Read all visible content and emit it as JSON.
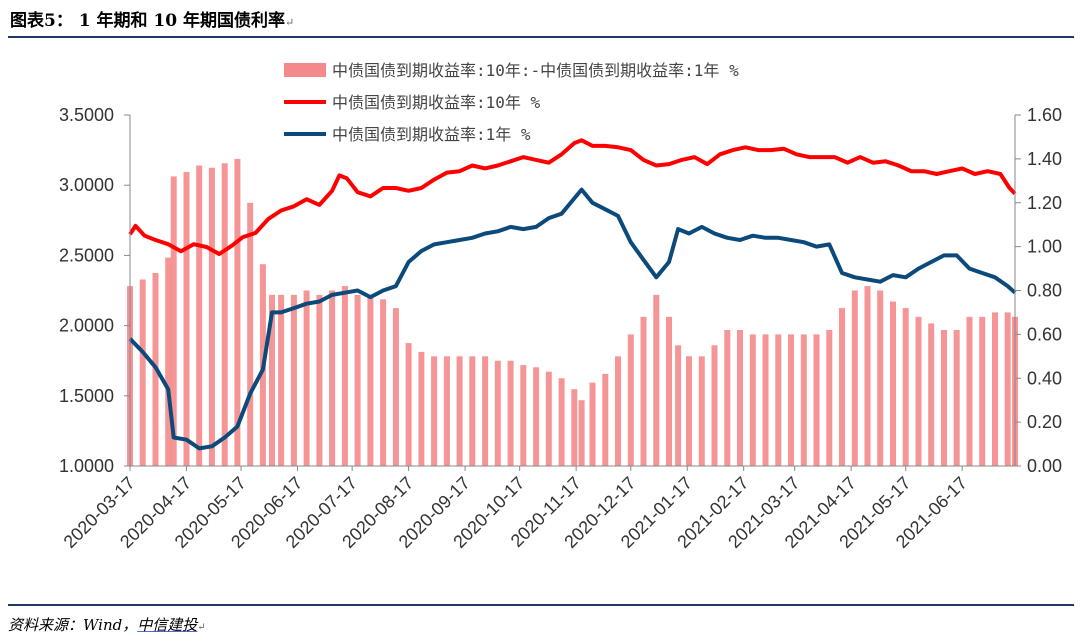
{
  "figure": {
    "title": "图表5： 1 年期和 10 年期国债利率",
    "title_mark": "↵",
    "source": "资料来源：Wind，",
    "source_brand": "中信建投",
    "source_mark": "↵"
  },
  "chart_data": {
    "type": "line",
    "title": "",
    "legend": {
      "position": "top-right",
      "entries": [
        {
          "label": "中债国债到期收益率:10年:-中债国债到期收益率:1年 %",
          "kind": "bar",
          "color": "#f4898b"
        },
        {
          "label": "中债国债到期收益率:10年 %",
          "kind": "line",
          "color": "#ff0000"
        },
        {
          "label": "中债国债到期收益率:1年 %",
          "kind": "line",
          "color": "#0b4a7a"
        }
      ]
    },
    "x_axis": {
      "start": "2020-03-17",
      "end": "2021-07-16",
      "tick_labels": [
        "2020-03-17",
        "2020-04-17",
        "2020-05-17",
        "2020-06-17",
        "2020-07-17",
        "2020-08-17",
        "2020-09-17",
        "2020-10-17",
        "2020-11-17",
        "2020-12-17",
        "2021-01-17",
        "2021-02-17",
        "2021-03-17",
        "2021-04-17",
        "2021-05-17",
        "2021-06-17"
      ]
    },
    "y_left": {
      "range": [
        1.0,
        3.5
      ],
      "tick_labels": [
        "3.5000",
        "3.0000",
        "2.5000",
        "2.0000",
        "1.5000",
        "1.0000"
      ],
      "tick_values": [
        3.5,
        3.0,
        2.5,
        2.0,
        1.5,
        1.0
      ]
    },
    "y_right": {
      "range": [
        0.0,
        1.6
      ],
      "tick_labels": [
        "1.60",
        "1.40",
        "1.20",
        "1.00",
        "0.80",
        "0.60",
        "0.40",
        "0.20",
        "0.00"
      ],
      "tick_values": [
        1.6,
        1.4,
        1.2,
        1.0,
        0.8,
        0.6,
        0.4,
        0.2,
        0.0
      ]
    },
    "grid": false,
    "series": [
      {
        "name": "中债国债到期收益率:10年 %",
        "axis": "left",
        "color": "#ff0000",
        "x": [
          "2020-03-17",
          "2020-03-20",
          "2020-03-25",
          "2020-03-31",
          "2020-04-07",
          "2020-04-14",
          "2020-04-21",
          "2020-04-28",
          "2020-05-05",
          "2020-05-12",
          "2020-05-18",
          "2020-05-25",
          "2020-06-01",
          "2020-06-08",
          "2020-06-15",
          "2020-06-22",
          "2020-06-29",
          "2020-07-06",
          "2020-07-10",
          "2020-07-14",
          "2020-07-20",
          "2020-07-27",
          "2020-08-03",
          "2020-08-10",
          "2020-08-17",
          "2020-08-24",
          "2020-08-31",
          "2020-09-07",
          "2020-09-14",
          "2020-09-21",
          "2020-09-28",
          "2020-10-05",
          "2020-10-12",
          "2020-10-19",
          "2020-10-26",
          "2020-11-02",
          "2020-11-09",
          "2020-11-16",
          "2020-11-20",
          "2020-11-26",
          "2020-12-03",
          "2020-12-10",
          "2020-12-17",
          "2020-12-24",
          "2020-12-31",
          "2021-01-07",
          "2021-01-14",
          "2021-01-21",
          "2021-01-28",
          "2021-02-04",
          "2021-02-11",
          "2021-02-18",
          "2021-02-25",
          "2021-03-04",
          "2021-03-11",
          "2021-03-18",
          "2021-03-25",
          "2021-04-01",
          "2021-04-08",
          "2021-04-15",
          "2021-04-22",
          "2021-04-29",
          "2021-05-06",
          "2021-05-13",
          "2021-05-20",
          "2021-05-27",
          "2021-06-03",
          "2021-06-10",
          "2021-06-17",
          "2021-06-24",
          "2021-07-01",
          "2021-07-08",
          "2021-07-13",
          "2021-07-16"
        ],
        "values": [
          2.65,
          2.71,
          2.64,
          2.61,
          2.58,
          2.53,
          2.58,
          2.56,
          2.51,
          2.57,
          2.63,
          2.66,
          2.76,
          2.82,
          2.85,
          2.9,
          2.86,
          2.96,
          3.07,
          3.05,
          2.95,
          2.92,
          2.98,
          2.98,
          2.96,
          2.98,
          3.04,
          3.09,
          3.1,
          3.14,
          3.12,
          3.14,
          3.17,
          3.2,
          3.18,
          3.16,
          3.22,
          3.3,
          3.32,
          3.28,
          3.28,
          3.27,
          3.25,
          3.18,
          3.14,
          3.15,
          3.18,
          3.2,
          3.15,
          3.22,
          3.25,
          3.27,
          3.25,
          3.25,
          3.26,
          3.22,
          3.2,
          3.2,
          3.2,
          3.16,
          3.2,
          3.16,
          3.17,
          3.14,
          3.1,
          3.1,
          3.08,
          3.1,
          3.12,
          3.08,
          3.1,
          3.08,
          2.98,
          2.94
        ]
      },
      {
        "name": "中债国债到期收益率:1年 %",
        "axis": "right",
        "color": "#0b4a7a",
        "x": [
          "2020-03-17",
          "2020-03-24",
          "2020-03-31",
          "2020-04-07",
          "2020-04-10",
          "2020-04-17",
          "2020-04-24",
          "2020-05-01",
          "2020-05-08",
          "2020-05-15",
          "2020-05-22",
          "2020-05-29",
          "2020-06-03",
          "2020-06-08",
          "2020-06-15",
          "2020-06-22",
          "2020-06-29",
          "2020-07-06",
          "2020-07-13",
          "2020-07-20",
          "2020-07-27",
          "2020-08-03",
          "2020-08-10",
          "2020-08-17",
          "2020-08-24",
          "2020-08-31",
          "2020-09-07",
          "2020-09-14",
          "2020-09-21",
          "2020-09-28",
          "2020-10-05",
          "2020-10-12",
          "2020-10-19",
          "2020-10-26",
          "2020-11-02",
          "2020-11-09",
          "2020-11-16",
          "2020-11-20",
          "2020-11-26",
          "2020-12-03",
          "2020-12-10",
          "2020-12-17",
          "2020-12-24",
          "2020-12-31",
          "2021-01-07",
          "2021-01-12",
          "2021-01-18",
          "2021-01-25",
          "2021-02-01",
          "2021-02-08",
          "2021-02-15",
          "2021-02-22",
          "2021-03-01",
          "2021-03-08",
          "2021-03-15",
          "2021-03-22",
          "2021-03-29",
          "2021-04-05",
          "2021-04-12",
          "2021-04-19",
          "2021-04-26",
          "2021-05-03",
          "2021-05-10",
          "2021-05-17",
          "2021-05-24",
          "2021-05-31",
          "2021-06-07",
          "2021-06-14",
          "2021-06-21",
          "2021-06-28",
          "2021-07-05",
          "2021-07-12",
          "2021-07-16"
        ],
        "values": [
          0.58,
          0.52,
          0.45,
          0.35,
          0.13,
          0.12,
          0.08,
          0.09,
          0.13,
          0.18,
          0.33,
          0.44,
          0.7,
          0.7,
          0.72,
          0.74,
          0.75,
          0.78,
          0.79,
          0.8,
          0.77,
          0.8,
          0.82,
          0.93,
          0.98,
          1.01,
          1.02,
          1.03,
          1.04,
          1.06,
          1.07,
          1.09,
          1.08,
          1.09,
          1.13,
          1.15,
          1.22,
          1.26,
          1.2,
          1.17,
          1.14,
          1.02,
          0.94,
          0.86,
          0.93,
          1.08,
          1.06,
          1.09,
          1.06,
          1.04,
          1.03,
          1.05,
          1.04,
          1.04,
          1.03,
          1.02,
          1.0,
          1.01,
          0.88,
          0.86,
          0.85,
          0.84,
          0.87,
          0.86,
          0.9,
          0.93,
          0.96,
          0.96,
          0.9,
          0.88,
          0.86,
          0.82,
          0.79
        ]
      },
      {
        "name": "中债国债到期收益率:10年:-中债国债到期收益率:1年 %",
        "axis": "right",
        "kind": "bar",
        "color": "#f4898b",
        "x": [
          "2020-03-17",
          "2020-03-24",
          "2020-03-31",
          "2020-04-07",
          "2020-04-10",
          "2020-04-17",
          "2020-04-24",
          "2020-05-01",
          "2020-05-08",
          "2020-05-15",
          "2020-05-22",
          "2020-05-29",
          "2020-06-03",
          "2020-06-08",
          "2020-06-15",
          "2020-06-22",
          "2020-06-29",
          "2020-07-06",
          "2020-07-13",
          "2020-07-20",
          "2020-07-27",
          "2020-08-03",
          "2020-08-10",
          "2020-08-17",
          "2020-08-24",
          "2020-08-31",
          "2020-09-07",
          "2020-09-14",
          "2020-09-21",
          "2020-09-28",
          "2020-10-05",
          "2020-10-12",
          "2020-10-19",
          "2020-10-26",
          "2020-11-02",
          "2020-11-09",
          "2020-11-16",
          "2020-11-20",
          "2020-11-26",
          "2020-12-03",
          "2020-12-10",
          "2020-12-17",
          "2020-12-24",
          "2020-12-31",
          "2021-01-07",
          "2021-01-12",
          "2021-01-18",
          "2021-01-25",
          "2021-02-01",
          "2021-02-08",
          "2021-02-15",
          "2021-02-22",
          "2021-03-01",
          "2021-03-08",
          "2021-03-15",
          "2021-03-22",
          "2021-03-29",
          "2021-04-05",
          "2021-04-12",
          "2021-04-19",
          "2021-04-26",
          "2021-05-03",
          "2021-05-10",
          "2021-05-17",
          "2021-05-24",
          "2021-05-31",
          "2021-06-07",
          "2021-06-14",
          "2021-06-21",
          "2021-06-28",
          "2021-07-05",
          "2021-07-12",
          "2021-07-16"
        ],
        "values": [
          0.82,
          0.85,
          0.88,
          0.95,
          1.32,
          1.34,
          1.37,
          1.36,
          1.38,
          1.4,
          1.2,
          0.92,
          0.78,
          0.78,
          0.78,
          0.8,
          0.78,
          0.8,
          0.82,
          0.78,
          0.78,
          0.76,
          0.72,
          0.56,
          0.52,
          0.5,
          0.5,
          0.5,
          0.5,
          0.5,
          0.48,
          0.48,
          0.46,
          0.45,
          0.43,
          0.4,
          0.35,
          0.3,
          0.38,
          0.42,
          0.5,
          0.6,
          0.68,
          0.78,
          0.68,
          0.55,
          0.5,
          0.5,
          0.55,
          0.62,
          0.62,
          0.6,
          0.6,
          0.6,
          0.6,
          0.6,
          0.6,
          0.62,
          0.72,
          0.8,
          0.82,
          0.8,
          0.75,
          0.72,
          0.68,
          0.65,
          0.62,
          0.62,
          0.68,
          0.68,
          0.7,
          0.7,
          0.68
        ]
      }
    ]
  }
}
